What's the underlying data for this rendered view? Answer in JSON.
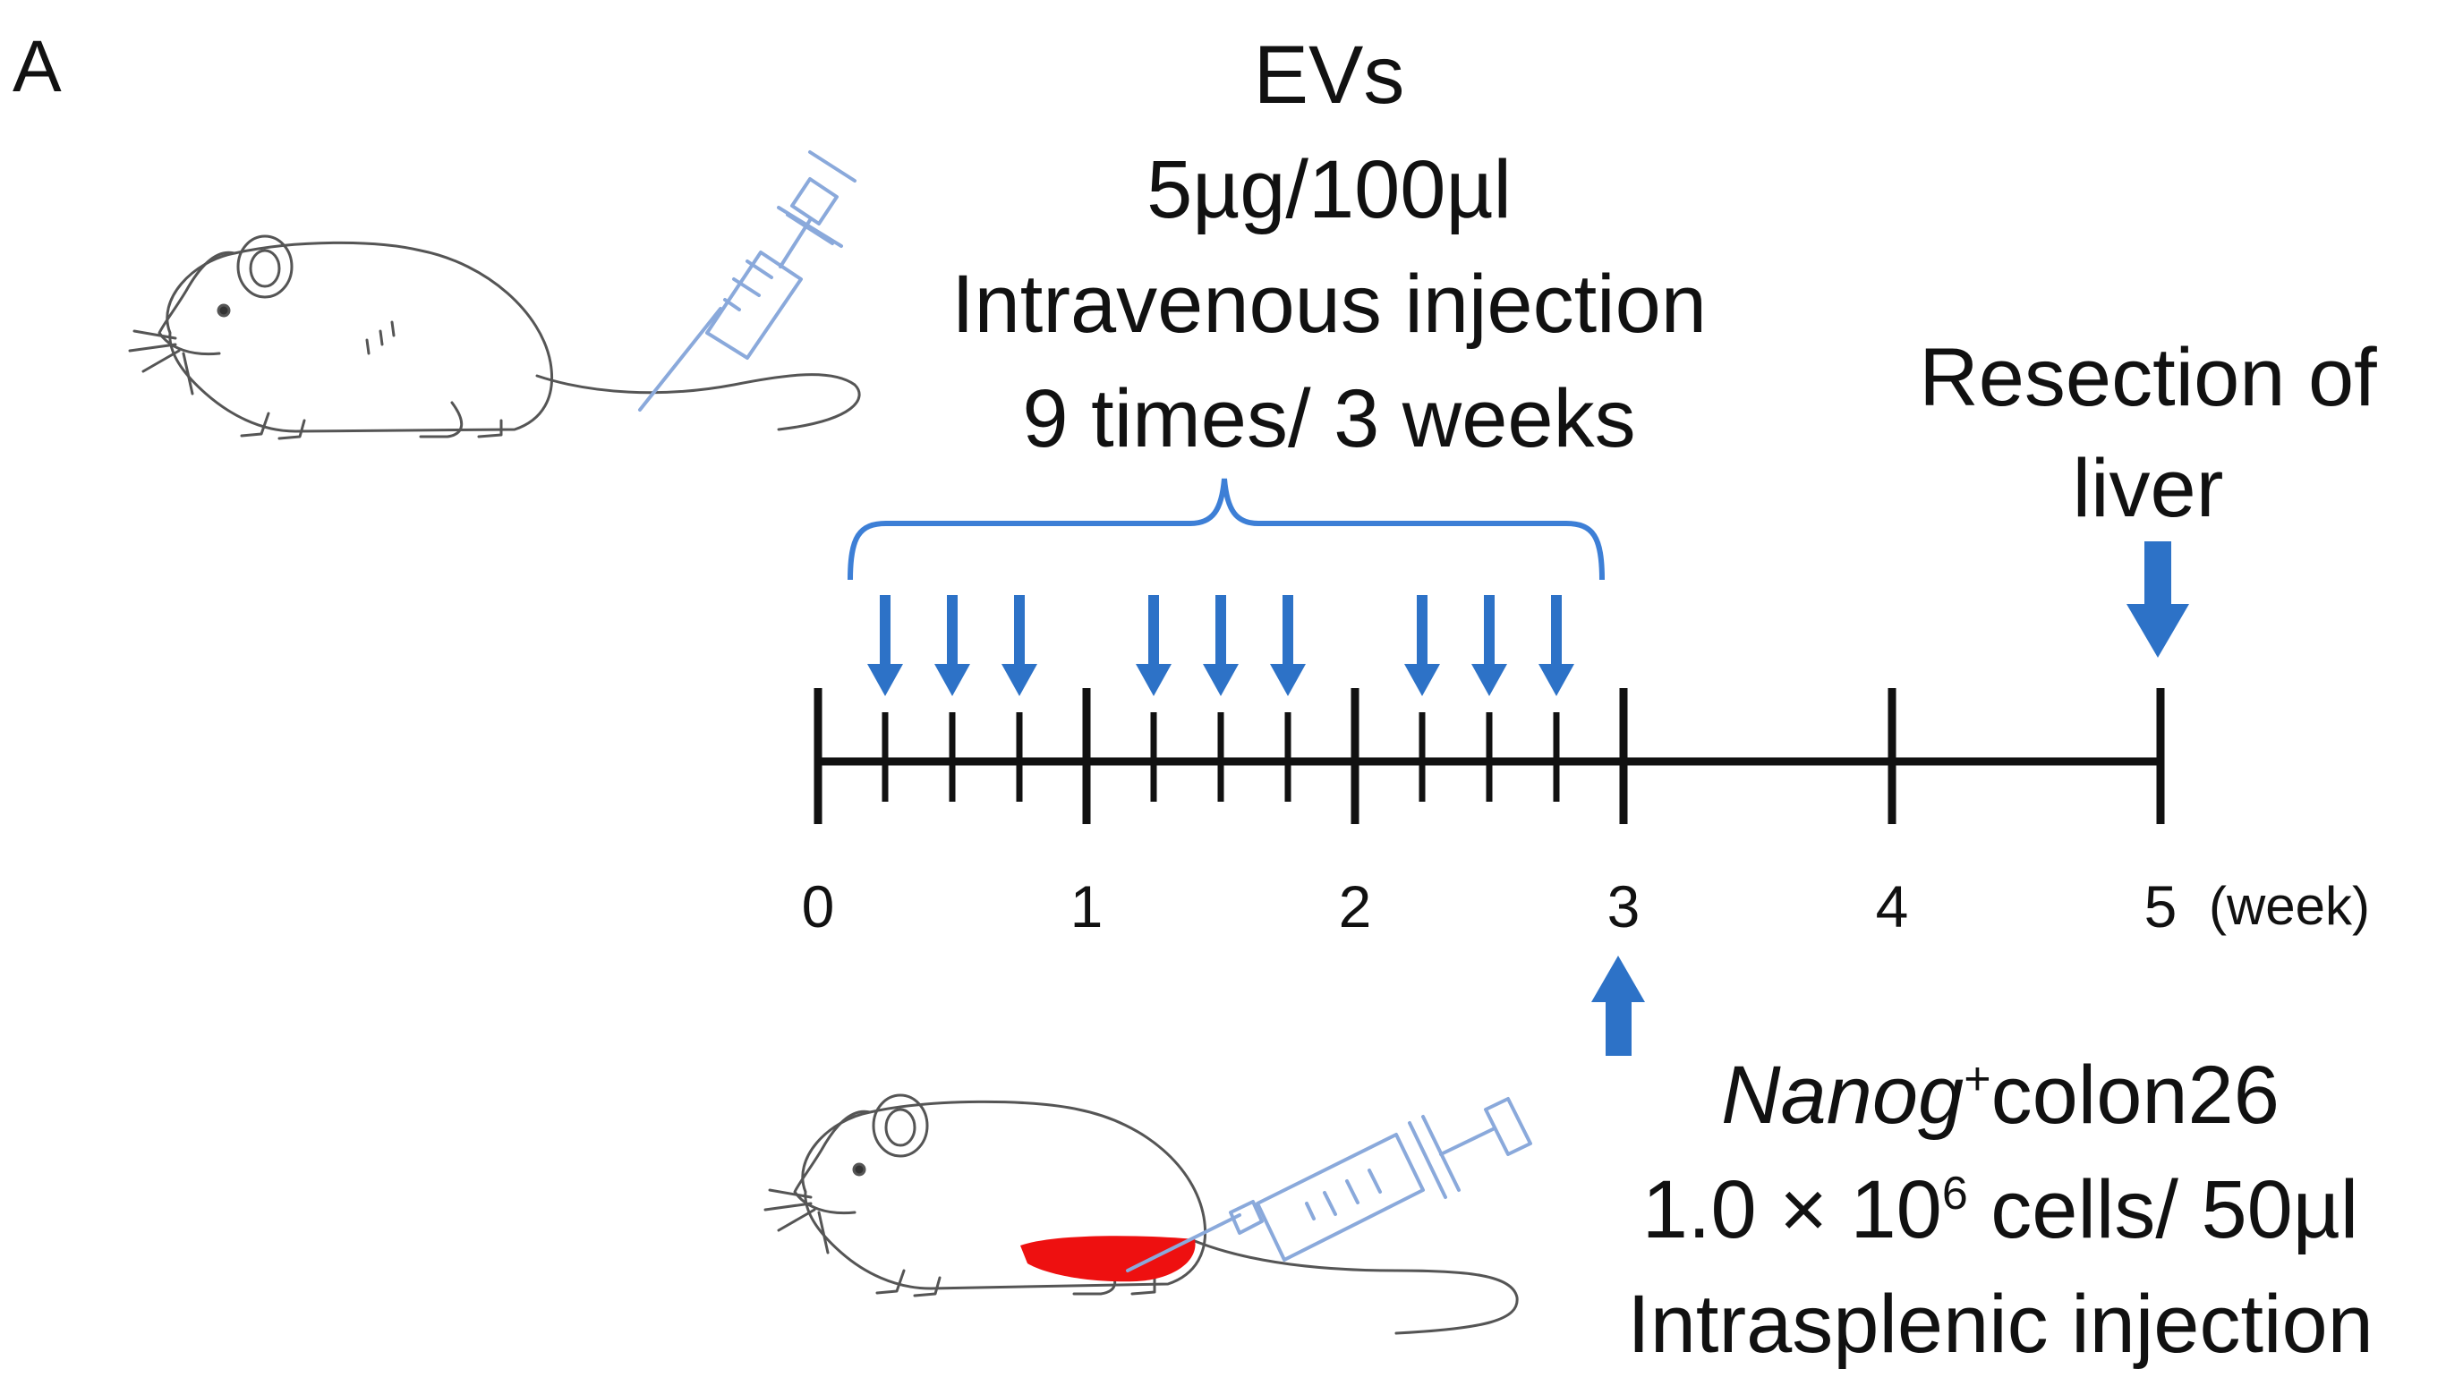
{
  "panel_label": "A",
  "ev_treatment": {
    "line1": "EVs",
    "line2": "5µg/100µl",
    "line3": "Intravenous injection",
    "line4": "9 times/ 3 weeks"
  },
  "resection": {
    "line1": "Resection of",
    "line2": "liver",
    "at_week": 5
  },
  "tumor_injection": {
    "name": "Nanog",
    "superscript": "+",
    "cell_line": "colon26",
    "dose": "1.0 × 10",
    "dose_exponent": "6",
    "dose_unit": " cells/ 50µl",
    "route": "Intrasplenic injection",
    "at_week": 3
  },
  "timeline": {
    "tick_labels": [
      "0",
      "1",
      "2",
      "3",
      "4",
      "5"
    ],
    "unit": "(week)",
    "ev_injection_weeks": [
      0.25,
      0.5,
      0.75,
      1.25,
      1.5,
      1.75,
      2.25,
      2.5,
      2.75
    ]
  },
  "colors": {
    "arrow_blue": "#2d72c7",
    "bracket_blue": "#3d7fd6",
    "syringe_blue": "#8aa9db",
    "spleen_red": "#ee1010",
    "axis_black": "#111111"
  }
}
